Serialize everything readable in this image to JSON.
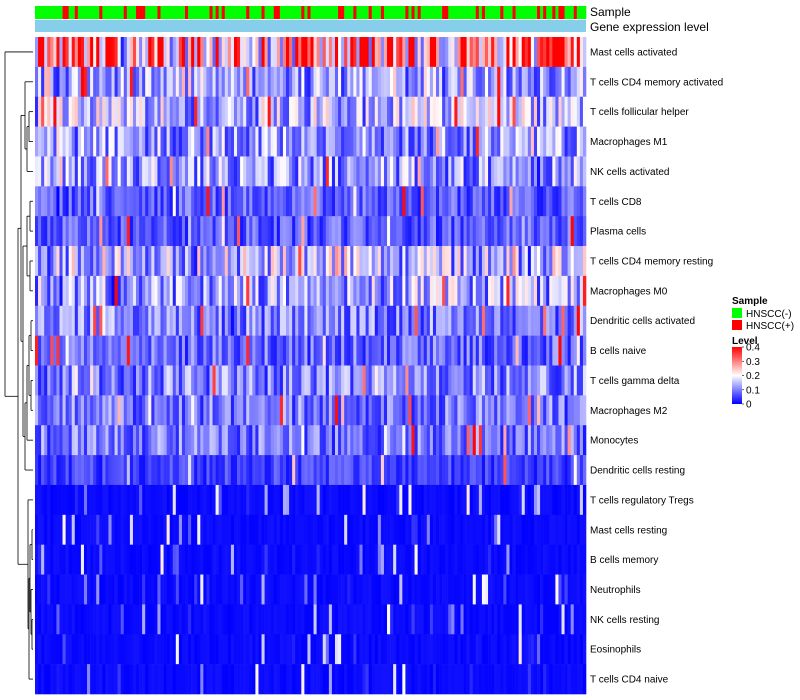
{
  "chart_data": {
    "type": "heatmap",
    "title": "",
    "annotation_rows": {
      "sample": "Sample",
      "gene_expression": "Gene expression level"
    },
    "row_labels": [
      "Mast cells activated",
      "T cells CD4 memory activated",
      "T cells follicular helper",
      "Macrophages M1",
      "NK cells activated",
      "T cells CD8",
      "Plasma cells",
      "T cells CD4 memory resting",
      "Macrophages M0",
      "Dendritic cells activated",
      "B cells naive",
      "T cells gamma delta",
      "Macrophages M2",
      "Monocytes",
      "Dendritic cells resting",
      "T cells regulatory  Tregs",
      "Mast cells resting",
      "B cells memory",
      "Neutrophils",
      "NK cells resting",
      "Eosinophils",
      "T cells CD4 naive"
    ],
    "row_mean_levels": [
      0.3,
      0.12,
      0.14,
      0.12,
      0.12,
      0.07,
      0.07,
      0.15,
      0.13,
      0.1,
      0.08,
      0.1,
      0.09,
      0.09,
      0.05,
      0.03,
      0.01,
      0.02,
      0.02,
      0.01,
      0.01,
      0.01
    ],
    "num_samples": 180,
    "legend": {
      "sample": {
        "title": "Sample",
        "entries": [
          {
            "label": "HNSCC(-)",
            "color": "#00ff00"
          },
          {
            "label": "HNSCC(+)",
            "color": "#ff0000"
          }
        ]
      },
      "level": {
        "title": "Level",
        "min": 0,
        "max": 0.4,
        "ticks": [
          "0.4",
          "0.3",
          "0.2",
          "0.1",
          "0"
        ],
        "colors": {
          "low": "#0000ff",
          "mid": "#ffffff",
          "high": "#ff0000"
        }
      }
    },
    "gene_expression_color": "#87ceeb"
  }
}
